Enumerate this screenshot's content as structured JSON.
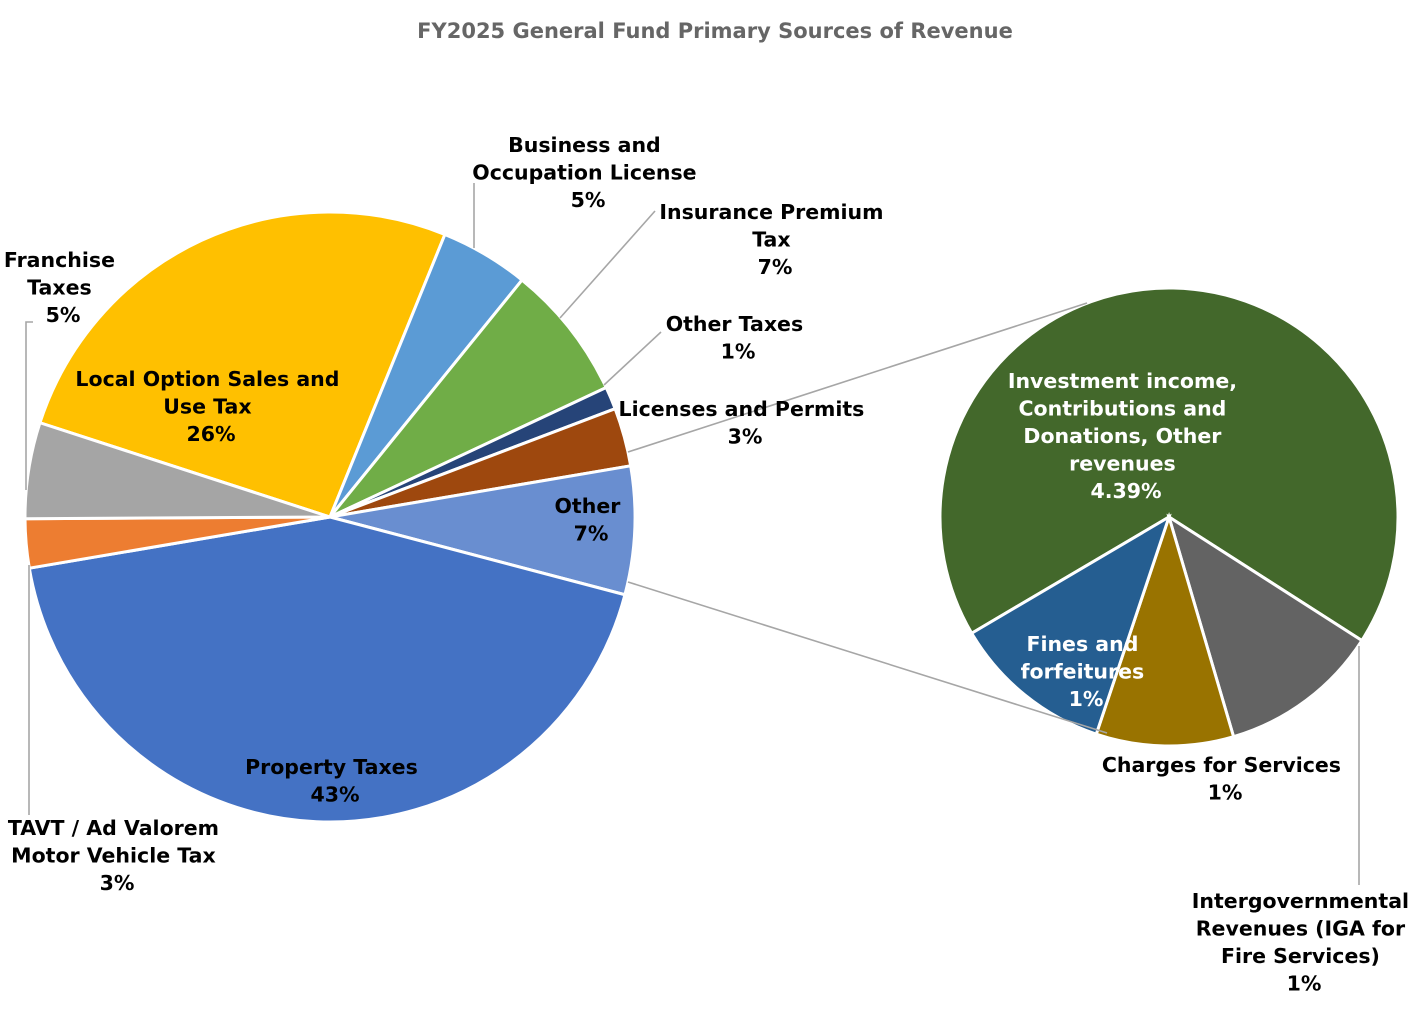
{
  "chart_data": {
    "type": "pie",
    "subtype": "pie-of-pie",
    "title": "FY2025 General Fund Primary Sources of Revenue",
    "main_pie": {
      "slices": [
        {
          "key": "local-option-sales-and-use-tax",
          "label": "Local Option Sales and Use Tax",
          "value_label": "26%",
          "value": 26.2,
          "color": "#FFC000"
        },
        {
          "key": "business-and-occupation-license",
          "label": "Business and Occupation License",
          "value_label": "5%",
          "value": 4.7,
          "color": "#5B9BD5"
        },
        {
          "key": "insurance-premium-tax",
          "label": "Insurance Premium Tax",
          "value_label": "7%",
          "value": 7.2,
          "color": "#70AD47"
        },
        {
          "key": "other-taxes",
          "label": "Other Taxes",
          "value_label": "1%",
          "value": 1.2,
          "color": "#264478"
        },
        {
          "key": "licenses-and-permits",
          "label": "Licenses and Permits",
          "value_label": "3%",
          "value": 3.1,
          "color": "#9E480E"
        },
        {
          "key": "other",
          "label": "Other",
          "value_label": "7%",
          "value": 6.8,
          "color": "#698ED0"
        },
        {
          "key": "property-taxes",
          "label": "Property Taxes",
          "value_label": "43%",
          "value": 43.3,
          "color": "#4472C4"
        },
        {
          "key": "tavt-ad-valorem-motor-vehicle-tax",
          "label": "TAVT / Ad Valorem Motor Vehicle Tax",
          "value_label": "3%",
          "value": 2.6,
          "color": "#ED7D31"
        },
        {
          "key": "franchise-taxes",
          "label": "Franchise Taxes",
          "value_label": "5%",
          "value": 5.1,
          "color": "#A5A5A5"
        }
      ]
    },
    "secondary_pie": {
      "of": "Other",
      "slices": [
        {
          "key": "investment-income-contributions-and-donations-other-revenues",
          "label": "Investment income, Contributions and Donations, Other revenues",
          "value_label": "4.39%",
          "value": 4.39,
          "color": "#43682B"
        },
        {
          "key": "intergovernmental-revenues-iga-for-fire-services",
          "label": "Intergovernmental Revenues (IGA for Fire Services)",
          "value_label": "1%",
          "value": 0.74,
          "color": "#636363"
        },
        {
          "key": "charges-for-services",
          "label": "Charges for Services",
          "value_label": "1%",
          "value": 0.63,
          "color": "#997300"
        },
        {
          "key": "fines-and-forfeitures",
          "label": "Fines and forfeitures",
          "value_label": "1%",
          "value": 0.74,
          "color": "#255E91"
        }
      ]
    },
    "legend": "none"
  },
  "labels": {
    "title": "FY2025 General Fund Primary Sources of Revenue",
    "local_sales_l1": "Local Option Sales and",
    "local_sales_l2": "Use Tax",
    "local_sales_pct": "26%",
    "business_l1": "Business and",
    "business_l2": "Occupation License",
    "business_pct": "5%",
    "insurance_l1": "Insurance Premium",
    "insurance_l2": "Tax",
    "insurance_pct": "7%",
    "other_taxes_l1": "Other Taxes",
    "other_taxes_pct": "1%",
    "licenses_l1": "Licenses and Permits",
    "licenses_pct": "3%",
    "other_l1": "Other",
    "other_pct": "7%",
    "property_l1": "Property Taxes",
    "property_pct": "43%",
    "tavt_l1": "TAVT / Ad Valorem",
    "tavt_l2": "Motor Vehicle Tax",
    "tavt_pct": "3%",
    "franchise_l1": "Franchise",
    "franchise_l2": "Taxes",
    "franchise_pct": "5%",
    "investment_l1": "Investment income,",
    "investment_l2": "Contributions and",
    "investment_l3": "Donations, Other",
    "investment_l4": "revenues",
    "investment_pct": "4.39%",
    "fines_l1": "Fines and",
    "fines_l2": "forfeitures",
    "fines_pct": "1%",
    "charges_l1": "Charges for Services",
    "charges_pct": "1%",
    "interg_l1": "Intergovernmental",
    "interg_l2": "Revenues (IGA for",
    "interg_l3": "Fire Services)",
    "interg_pct": "1%"
  }
}
